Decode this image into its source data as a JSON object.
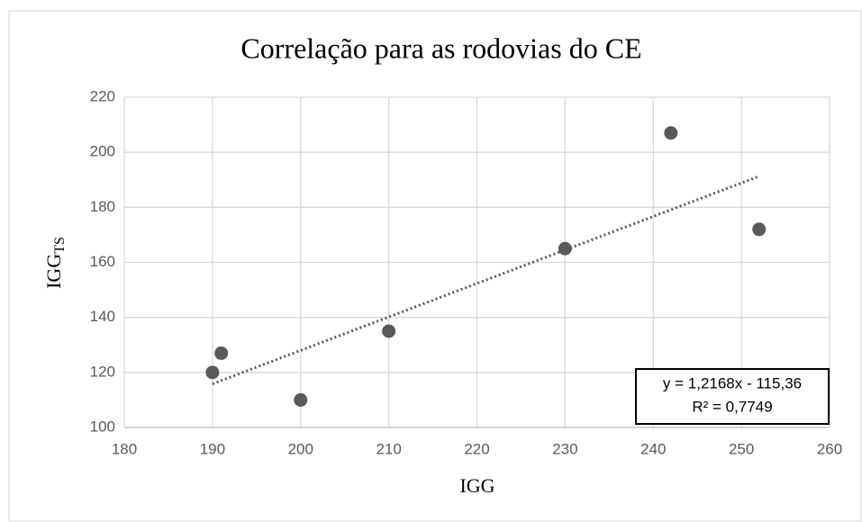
{
  "chart_data": {
    "type": "scatter",
    "title": "Correlação para as rodovias do CE",
    "xlabel": "IGG",
    "ylabel": "IGG",
    "ylabel_subscript": "TS",
    "x": [
      190,
      191,
      200,
      210,
      230,
      242,
      252
    ],
    "values": [
      120,
      127,
      110,
      135,
      165,
      207,
      172
    ],
    "color": "#595959",
    "xlim": [
      180,
      260
    ],
    "xticks": [
      180,
      190,
      200,
      210,
      220,
      230,
      240,
      250,
      260
    ],
    "ylim": [
      100,
      220
    ],
    "yticks": [
      100,
      120,
      140,
      160,
      180,
      200,
      220
    ],
    "grid": true,
    "trendline": {
      "slope": 1.2168,
      "intercept": -115.36,
      "equation": "y = 1,2168x - 115,36",
      "r2": "R² = 0,7749"
    }
  }
}
